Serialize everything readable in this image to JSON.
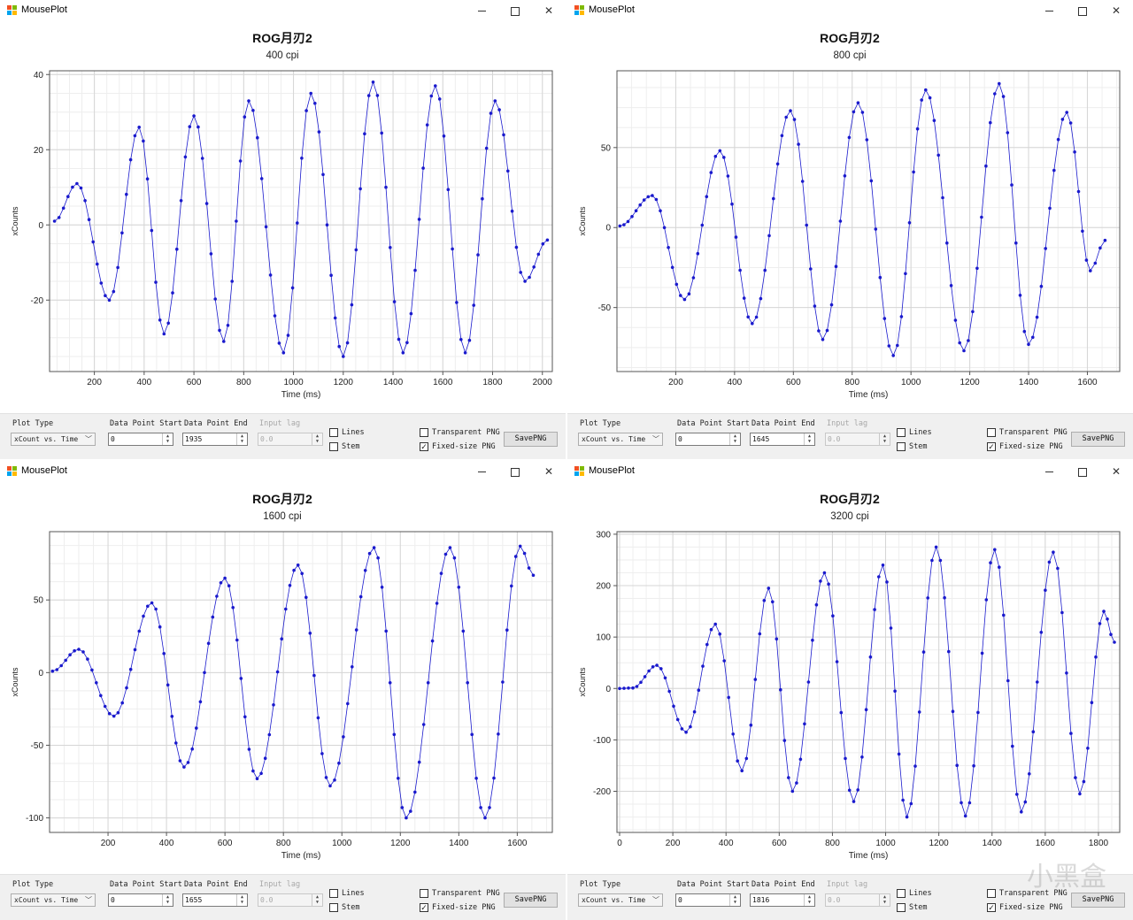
{
  "app_title": "MousePlot",
  "controls_labels": {
    "plot_type": "Plot Type",
    "data_point_start": "Data Point Start",
    "data_point_end": "Data Point End",
    "input_lag": "Input lag",
    "lines": "Lines",
    "stem": "Stem",
    "transparent_png": "Transparent PNG",
    "fixed_size_png": "Fixed-size PNG",
    "save_png": "SavePNG"
  },
  "watermark": "小黑盒",
  "series_color": "#1a1acd",
  "windows": [
    {
      "title": "ROG月刃2",
      "subtitle": "400 cpi",
      "plot_type_value": "xCount vs. Time",
      "start_value": "0",
      "end_value": "1935",
      "input_lag_value": "0.0",
      "lines_checked": false,
      "stem_checked": false,
      "transparent_checked": false,
      "fixed_checked": true,
      "chart_data": {
        "type": "scatter",
        "xlabel": "Time (ms)",
        "ylabel": "xCounts",
        "xlim": [
          20,
          2040
        ],
        "ylim": [
          -39,
          41
        ],
        "xticks": [
          200,
          400,
          600,
          800,
          1000,
          1200,
          1400,
          1600,
          1800,
          2000
        ],
        "yticks": [
          40,
          20,
          0,
          -20
        ],
        "extrema": [
          [
            40,
            1
          ],
          [
            130,
            11
          ],
          [
            260,
            -20
          ],
          [
            380,
            26
          ],
          [
            480,
            -29
          ],
          [
            600,
            29
          ],
          [
            720,
            -31
          ],
          [
            820,
            33
          ],
          [
            960,
            -34
          ],
          [
            1070,
            35
          ],
          [
            1200,
            -35
          ],
          [
            1320,
            38
          ],
          [
            1440,
            -34
          ],
          [
            1570,
            37
          ],
          [
            1690,
            -34
          ],
          [
            1810,
            33
          ],
          [
            1930,
            -15
          ],
          [
            2020,
            -4
          ]
        ]
      }
    },
    {
      "title": "ROG月刃2",
      "subtitle": "800 cpi",
      "plot_type_value": "xCount vs. Time",
      "start_value": "0",
      "end_value": "1645",
      "input_lag_value": "0.0",
      "lines_checked": false,
      "stem_checked": false,
      "transparent_checked": false,
      "fixed_checked": true,
      "chart_data": {
        "type": "scatter",
        "xlabel": "Time (ms)",
        "ylabel": "xCounts",
        "xlim": [
          0,
          1710
        ],
        "ylim": [
          -90,
          98
        ],
        "xticks": [
          200,
          400,
          600,
          800,
          1000,
          1200,
          1400,
          1600
        ],
        "yticks": [
          50,
          0,
          -50
        ],
        "extrema": [
          [
            10,
            1
          ],
          [
            120,
            20
          ],
          [
            230,
            -45
          ],
          [
            350,
            48
          ],
          [
            460,
            -60
          ],
          [
            590,
            73
          ],
          [
            700,
            -70
          ],
          [
            820,
            78
          ],
          [
            940,
            -80
          ],
          [
            1050,
            86
          ],
          [
            1180,
            -77
          ],
          [
            1300,
            90
          ],
          [
            1400,
            -73
          ],
          [
            1530,
            72
          ],
          [
            1610,
            -27
          ],
          [
            1660,
            -8
          ]
        ]
      }
    },
    {
      "title": "ROG月刃2",
      "subtitle": "1600 cpi",
      "plot_type_value": "xCount vs. Time",
      "start_value": "0",
      "end_value": "1655",
      "input_lag_value": "0.0",
      "lines_checked": false,
      "stem_checked": false,
      "transparent_checked": false,
      "fixed_checked": true,
      "chart_data": {
        "type": "scatter",
        "xlabel": "Time (ms)",
        "ylabel": "xCounts",
        "xlim": [
          0,
          1720
        ],
        "ylim": [
          -110,
          97
        ],
        "xticks": [
          200,
          400,
          600,
          800,
          1000,
          1200,
          1400,
          1600
        ],
        "yticks": [
          50,
          0,
          -50,
          -100
        ],
        "extrema": [
          [
            10,
            1
          ],
          [
            100,
            16
          ],
          [
            220,
            -30
          ],
          [
            350,
            48
          ],
          [
            460,
            -65
          ],
          [
            600,
            65
          ],
          [
            710,
            -73
          ],
          [
            850,
            74
          ],
          [
            960,
            -78
          ],
          [
            1110,
            86
          ],
          [
            1220,
            -100
          ],
          [
            1370,
            86
          ],
          [
            1490,
            -100
          ],
          [
            1610,
            87
          ],
          [
            1655,
            67
          ]
        ]
      }
    },
    {
      "title": "ROG月刃2",
      "subtitle": "3200 cpi",
      "plot_type_value": "xCount vs. Time",
      "start_value": "0",
      "end_value": "1816",
      "input_lag_value": "0.0",
      "lines_checked": false,
      "stem_checked": false,
      "transparent_checked": false,
      "fixed_checked": true,
      "chart_data": {
        "type": "scatter",
        "xlabel": "Time (ms)",
        "ylabel": "xCounts",
        "xlim": [
          -10,
          1880
        ],
        "ylim": [
          -280,
          305
        ],
        "xticks": [
          0,
          200,
          400,
          600,
          800,
          1000,
          1200,
          1400,
          1600,
          1800
        ],
        "yticks": [
          300,
          200,
          100,
          0,
          -100,
          -200
        ],
        "extrema": [
          [
            0,
            0
          ],
          [
            50,
            1
          ],
          [
            140,
            45
          ],
          [
            250,
            -85
          ],
          [
            360,
            125
          ],
          [
            460,
            -160
          ],
          [
            560,
            195
          ],
          [
            650,
            -200
          ],
          [
            770,
            225
          ],
          [
            880,
            -220
          ],
          [
            990,
            240
          ],
          [
            1080,
            -250
          ],
          [
            1190,
            275
          ],
          [
            1300,
            -248
          ],
          [
            1410,
            270
          ],
          [
            1510,
            -240
          ],
          [
            1630,
            265
          ],
          [
            1730,
            -205
          ],
          [
            1820,
            150
          ],
          [
            1860,
            90
          ]
        ]
      }
    }
  ]
}
